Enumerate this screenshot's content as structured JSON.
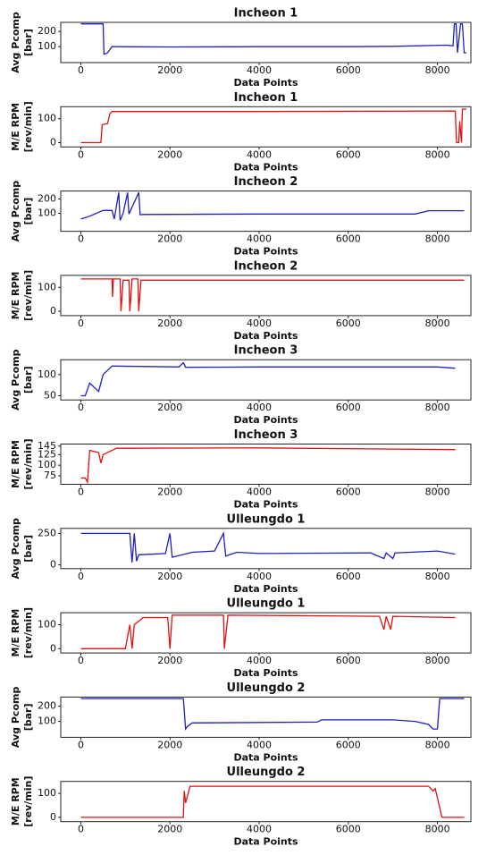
{
  "chart_data": [
    {
      "type": "line",
      "title": "Incheon 1",
      "xlabel": "Data  Points",
      "ylabel": [
        "Avg  Pcomp",
        "[bar]"
      ],
      "xlim": [
        -450,
        8750
      ],
      "xticks": [
        0,
        2000,
        4000,
        6000,
        8000
      ],
      "ylim": [
        -5,
        260
      ],
      "yticks": [
        100,
        200
      ],
      "series": [
        {
          "color": "#1f1fbf",
          "x": [
            0,
            500,
            520,
            600,
            700,
            2000,
            4000,
            6000,
            7000,
            8200,
            8350,
            8380,
            8420,
            8450,
            8520,
            8560,
            8600,
            8650
          ],
          "values": [
            250,
            250,
            50,
            60,
            100,
            98,
            100,
            100,
            102,
            110,
            105,
            250,
            250,
            60,
            250,
            250,
            60,
            60
          ]
        }
      ]
    },
    {
      "type": "line",
      "title": "Incheon 1",
      "xlabel": "Data  Points",
      "ylabel": [
        "M/E  RPM",
        "[rev/min]"
      ],
      "xlim": [
        -450,
        8750
      ],
      "xticks": [
        0,
        2000,
        4000,
        6000,
        8000
      ],
      "ylim": [
        -18,
        150
      ],
      "yticks": [
        0,
        100
      ],
      "series": [
        {
          "color": "#e01010",
          "x": [
            0,
            450,
            480,
            600,
            650,
            700,
            4000,
            8400,
            8430,
            8480,
            8500,
            8540,
            8560,
            8650
          ],
          "values": [
            0,
            0,
            75,
            80,
            120,
            130,
            130,
            132,
            0,
            0,
            90,
            0,
            140,
            140
          ]
        }
      ]
    },
    {
      "type": "line",
      "title": "Incheon 2",
      "xlabel": "Data  Points",
      "ylabel": [
        "Avg  Pcomp",
        "[bar]"
      ],
      "xlim": [
        -450,
        8750
      ],
      "xticks": [
        0,
        2000,
        4000,
        6000,
        8000
      ],
      "ylim": [
        -25,
        255
      ],
      "yticks": [
        100,
        200
      ],
      "series": [
        {
          "color": "#1f1fbf",
          "x": [
            0,
            200,
            500,
            700,
            750,
            850,
            880,
            950,
            1050,
            1080,
            1300,
            1330,
            1400,
            4000,
            7500,
            7800,
            8600
          ],
          "values": [
            60,
            80,
            120,
            120,
            60,
            245,
            50,
            100,
            245,
            95,
            245,
            90,
            92,
            95,
            95,
            118,
            118
          ]
        }
      ]
    },
    {
      "type": "line",
      "title": "Incheon 2",
      "xlabel": "Data  Points",
      "ylabel": [
        "M/E  RPM",
        "[rev/min]"
      ],
      "xlim": [
        -450,
        8750
      ],
      "xticks": [
        0,
        2000,
        4000,
        6000,
        8000
      ],
      "ylim": [
        -18,
        150
      ],
      "yticks": [
        0,
        100
      ],
      "series": [
        {
          "color": "#e01010",
          "x": [
            0,
            700,
            710,
            730,
            880,
            900,
            950,
            1080,
            1100,
            1150,
            1280,
            1300,
            1350,
            8600
          ],
          "values": [
            135,
            135,
            60,
            135,
            135,
            0,
            130,
            130,
            0,
            135,
            135,
            0,
            130,
            130
          ]
        }
      ]
    },
    {
      "type": "line",
      "title": "Incheon 3",
      "xlabel": "Data  Points",
      "ylabel": [
        "Avg  Pcomp",
        "[bar]"
      ],
      "xlim": [
        -450,
        8750
      ],
      "xticks": [
        0,
        2000,
        4000,
        6000,
        8000
      ],
      "ylim": [
        40,
        135
      ],
      "yticks": [
        50,
        100
      ],
      "series": [
        {
          "color": "#1f1fbf",
          "x": [
            0,
            100,
            200,
            400,
            500,
            700,
            2200,
            2300,
            2350,
            4000,
            8000,
            8400
          ],
          "values": [
            50,
            50,
            80,
            60,
            100,
            120,
            118,
            128,
            117,
            118,
            118,
            115
          ]
        }
      ]
    },
    {
      "type": "line",
      "title": "Incheon 3",
      "xlabel": "Data  Points",
      "ylabel": [
        "M/E  RPM",
        "[rev/min]"
      ],
      "xlim": [
        -450,
        8750
      ],
      "xticks": [
        0,
        2000,
        4000,
        6000,
        8000
      ],
      "ylim": [
        55,
        150
      ],
      "yticks": [
        75,
        100,
        125,
        145
      ],
      "series": [
        {
          "color": "#e01010",
          "x": [
            0,
            100,
            150,
            200,
            400,
            450,
            500,
            800,
            4000,
            8400
          ],
          "values": [
            70,
            70,
            60,
            135,
            130,
            105,
            125,
            140,
            141,
            137
          ]
        }
      ]
    },
    {
      "type": "line",
      "title": "Ulleungdo 1",
      "xlabel": "Data  Points",
      "ylabel": [
        "Avg  Pcomp",
        "[bar]"
      ],
      "xlim": [
        -450,
        8750
      ],
      "xticks": [
        0,
        2000,
        4000,
        6000,
        8000
      ],
      "ylim": [
        -30,
        290
      ],
      "yticks": [
        0,
        250
      ],
      "series": [
        {
          "color": "#1f1fbf",
          "x": [
            0,
            1100,
            1150,
            1200,
            1250,
            1300,
            1900,
            2000,
            2050,
            2500,
            3000,
            3200,
            3250,
            3500,
            4000,
            6500,
            6800,
            6850,
            7000,
            7050,
            8000,
            8400
          ],
          "values": [
            250,
            250,
            20,
            250,
            30,
            80,
            90,
            250,
            60,
            100,
            110,
            250,
            70,
            100,
            90,
            95,
            50,
            95,
            50,
            95,
            110,
            85
          ]
        }
      ]
    },
    {
      "type": "line",
      "title": "Ulleungdo 1",
      "xlabel": "Data  Points",
      "ylabel": [
        "M/E  RPM",
        "[rev/min]"
      ],
      "xlim": [
        -450,
        8750
      ],
      "xticks": [
        0,
        2000,
        4000,
        6000,
        8000
      ],
      "ylim": [
        -18,
        150
      ],
      "yticks": [
        0,
        100
      ],
      "series": [
        {
          "color": "#e01010",
          "x": [
            0,
            1000,
            1100,
            1150,
            1200,
            1400,
            1950,
            2000,
            2050,
            3200,
            3220,
            3300,
            6700,
            6800,
            6850,
            6950,
            7000,
            8400
          ],
          "values": [
            0,
            0,
            100,
            0,
            100,
            130,
            130,
            0,
            140,
            140,
            0,
            140,
            135,
            80,
            135,
            80,
            135,
            130
          ]
        }
      ]
    },
    {
      "type": "line",
      "title": "Ulleungdo 2",
      "xlabel": "Data  Points",
      "ylabel": [
        "Avg  Pcomp",
        "[bar]"
      ],
      "xlim": [
        -450,
        8750
      ],
      "xticks": [
        0,
        2000,
        4000,
        6000,
        8000
      ],
      "ylim": [
        -5,
        260
      ],
      "yticks": [
        100,
        200
      ],
      "series": [
        {
          "color": "#1f1fbf",
          "x": [
            0,
            2300,
            2350,
            2400,
            2500,
            5300,
            5400,
            7000,
            7500,
            7800,
            7900,
            8000,
            8050,
            8600
          ],
          "values": [
            250,
            250,
            50,
            70,
            90,
            95,
            110,
            110,
            100,
            80,
            50,
            50,
            250,
            250
          ]
        }
      ]
    },
    {
      "type": "line",
      "title": "Ulleungdo 2",
      "xlabel": "Data  Points",
      "ylabel": [
        "M/E  RPM",
        "[rev/min]"
      ],
      "xlim": [
        -450,
        8750
      ],
      "xticks": [
        0,
        2000,
        4000,
        6000,
        8000
      ],
      "ylim": [
        -18,
        150
      ],
      "yticks": [
        0,
        100
      ],
      "series": [
        {
          "color": "#e01010",
          "x": [
            0,
            2300,
            2320,
            2350,
            2450,
            7800,
            7900,
            7950,
            8000,
            8100,
            8600
          ],
          "values": [
            0,
            0,
            110,
            60,
            130,
            130,
            110,
            120,
            80,
            0,
            0
          ]
        }
      ]
    }
  ]
}
